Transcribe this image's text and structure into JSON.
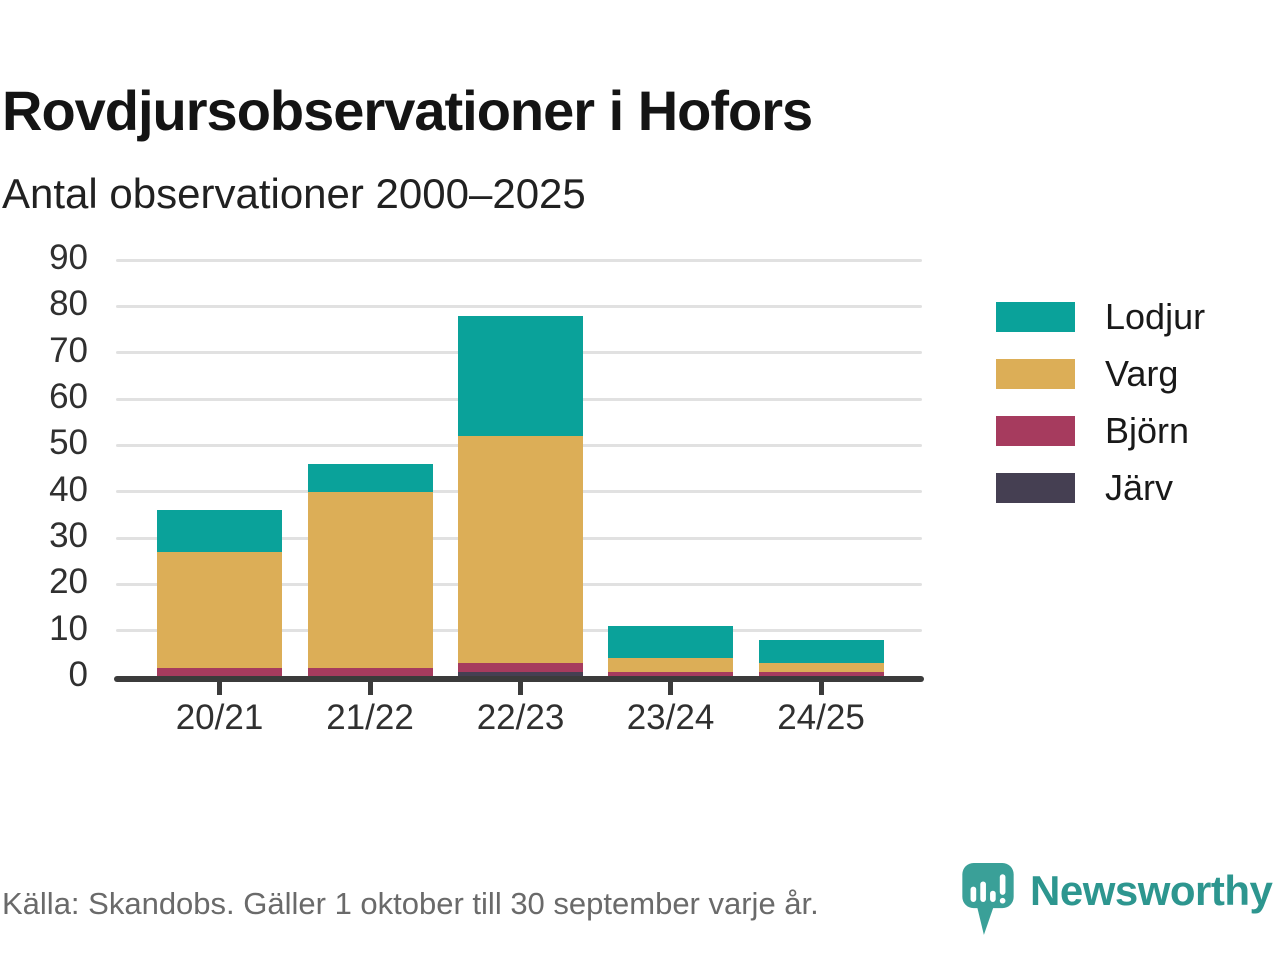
{
  "header": {
    "title": "Rovdjursobservationer i Hofors",
    "subtitle": "Antal observationer 2000–2025"
  },
  "chart_data": {
    "type": "bar",
    "stacked": true,
    "title": "Rovdjursobservationer i Hofors",
    "subtitle": "Antal observationer 2000–2025",
    "categories": [
      "20/21",
      "21/22",
      "22/23",
      "23/24",
      "24/25"
    ],
    "series": [
      {
        "name": "Lodjur",
        "color": "#0aa29a",
        "values": [
          9,
          6,
          26,
          7,
          5
        ]
      },
      {
        "name": "Varg",
        "color": "#dcae57",
        "values": [
          25,
          38,
          49,
          3,
          2
        ]
      },
      {
        "name": "Björn",
        "color": "#a63b5e",
        "values": [
          2,
          2,
          2,
          1,
          1
        ]
      },
      {
        "name": "Järv",
        "color": "#453f52",
        "values": [
          0,
          0,
          1,
          0,
          0
        ]
      }
    ],
    "stack_order_bottom_to_top": [
      "Järv",
      "Björn",
      "Varg",
      "Lodjur"
    ],
    "totals": [
      36,
      46,
      78,
      11,
      8
    ],
    "xlabel": "",
    "ylabel": "",
    "ylim": [
      0,
      90
    ],
    "yticks": [
      0,
      10,
      20,
      30,
      40,
      50,
      60,
      70,
      80,
      90
    ],
    "grid": true,
    "legend_position": "right"
  },
  "legend": {
    "items": [
      {
        "label": "Lodjur",
        "color": "#0aa29a"
      },
      {
        "label": "Varg",
        "color": "#dcae57"
      },
      {
        "label": "Björn",
        "color": "#a63b5e"
      },
      {
        "label": "Järv",
        "color": "#453f52"
      }
    ]
  },
  "footer": {
    "source": "Källa: Skandobs. Gäller 1 oktober till 30 september varje år.",
    "brand": "Newsworthy"
  },
  "colors": {
    "teal": "#0aa29a",
    "gold": "#dcae57",
    "maroon": "#a63b5e",
    "dark_slate": "#453f52",
    "brand_teal": "#2d968f",
    "grid": "#e1e1e1",
    "axis": "#3b3b3b",
    "text_dark": "#141414",
    "text_gray": "#6a6a6a"
  }
}
